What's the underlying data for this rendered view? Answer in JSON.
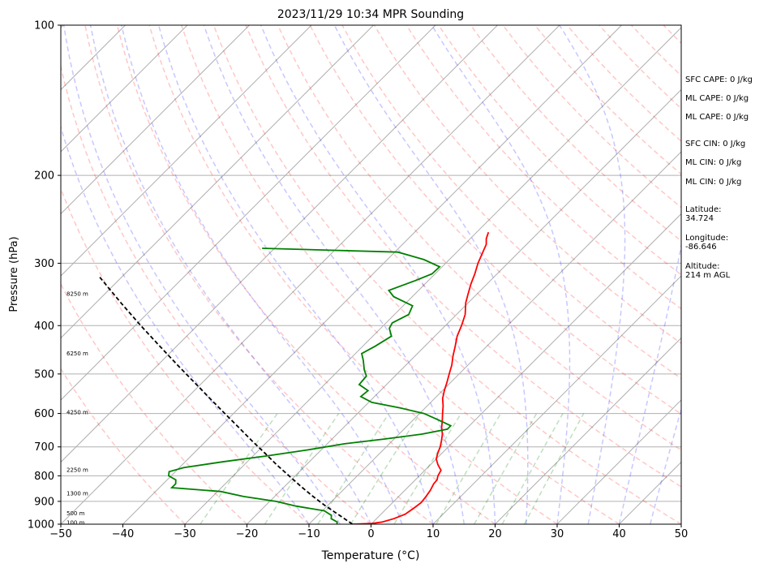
{
  "chart_data": {
    "type": "line",
    "title": "2023/11/29 10:34 MPR Sounding",
    "xlabel": "Temperature (°C)",
    "ylabel": "Pressure (hPa)",
    "xlim": [
      -50,
      50
    ],
    "ylim": [
      1000,
      100
    ],
    "y_scale": "log",
    "x_ticks": [
      "−50",
      "−40",
      "−30",
      "−20",
      "−10",
      "0",
      "10",
      "20",
      "30",
      "40",
      "50"
    ],
    "x_tick_values": [
      -50,
      -40,
      -30,
      -20,
      -10,
      0,
      10,
      20,
      30,
      40,
      50
    ],
    "y_ticks": [
      "100",
      "200",
      "300",
      "400",
      "500",
      "600",
      "700",
      "800",
      "900",
      "1000"
    ],
    "y_tick_values": [
      100,
      200,
      300,
      400,
      500,
      600,
      700,
      800,
      900,
      1000
    ],
    "grid": true,
    "skew": "skew-T",
    "height_labels": [
      {
        "text": "8250 m",
        "p": 345
      },
      {
        "text": "6250 m",
        "p": 455
      },
      {
        "text": "4250 m",
        "p": 596
      },
      {
        "text": "2250 m",
        "p": 778
      },
      {
        "text": "1300 m",
        "p": 868
      },
      {
        "text": "500 m",
        "p": 950
      },
      {
        "text": "100 m",
        "p": 992
      }
    ],
    "series": [
      {
        "role": "temperature",
        "color": "#ff0000",
        "points": [
          [
            1000,
            -3.0
          ],
          [
            997,
            0.0
          ],
          [
            990,
            1.5
          ],
          [
            975,
            2.8
          ],
          [
            955,
            3.9
          ],
          [
            930,
            4.3
          ],
          [
            905,
            4.6
          ],
          [
            880,
            4.4
          ],
          [
            855,
            4.1
          ],
          [
            830,
            3.6
          ],
          [
            815,
            3.5
          ],
          [
            800,
            3.0
          ],
          [
            780,
            2.6
          ],
          [
            760,
            1.2
          ],
          [
            740,
            0.0
          ],
          [
            720,
            -0.7
          ],
          [
            700,
            -1.3
          ],
          [
            680,
            -2.1
          ],
          [
            660,
            -3.0
          ],
          [
            640,
            -4.2
          ],
          [
            620,
            -5.2
          ],
          [
            600,
            -6.3
          ],
          [
            580,
            -7.4
          ],
          [
            560,
            -8.7
          ],
          [
            540,
            -9.7
          ],
          [
            520,
            -10.6
          ],
          [
            500,
            -11.6
          ],
          [
            480,
            -12.6
          ],
          [
            460,
            -13.9
          ],
          [
            440,
            -15.1
          ],
          [
            420,
            -16.4
          ],
          [
            400,
            -17.4
          ],
          [
            380,
            -18.6
          ],
          [
            360,
            -20.4
          ],
          [
            345,
            -21.5
          ],
          [
            330,
            -22.6
          ],
          [
            315,
            -23.6
          ],
          [
            300,
            -24.8
          ],
          [
            285,
            -25.8
          ],
          [
            275,
            -26.5
          ],
          [
            268,
            -27.4
          ],
          [
            260,
            -28.1
          ]
        ]
      },
      {
        "role": "dewpoint",
        "color": "#008000",
        "points": [
          [
            1000,
            -5.5
          ],
          [
            990,
            -5.8
          ],
          [
            975,
            -7.3
          ],
          [
            960,
            -7.8
          ],
          [
            940,
            -9.7
          ],
          [
            920,
            -15.0
          ],
          [
            900,
            -19.0
          ],
          [
            880,
            -25.0
          ],
          [
            860,
            -29.5
          ],
          [
            845,
            -38.0
          ],
          [
            830,
            -38.0
          ],
          [
            815,
            -38.6
          ],
          [
            800,
            -40.4
          ],
          [
            785,
            -41.0
          ],
          [
            770,
            -39.3
          ],
          [
            750,
            -34.0
          ],
          [
            730,
            -27.8
          ],
          [
            710,
            -22.2
          ],
          [
            690,
            -17.2
          ],
          [
            675,
            -11.5
          ],
          [
            660,
            -6.3
          ],
          [
            645,
            -3.0
          ],
          [
            635,
            -3.0
          ],
          [
            620,
            -5.6
          ],
          [
            600,
            -9.3
          ],
          [
            585,
            -14.0
          ],
          [
            570,
            -19.5
          ],
          [
            555,
            -22.2
          ],
          [
            540,
            -22.0
          ],
          [
            525,
            -24.4
          ],
          [
            505,
            -24.6
          ],
          [
            490,
            -26.0
          ],
          [
            470,
            -27.6
          ],
          [
            455,
            -29.0
          ],
          [
            440,
            -28.0
          ],
          [
            420,
            -27.0
          ],
          [
            405,
            -28.6
          ],
          [
            395,
            -29.0
          ],
          [
            380,
            -27.7
          ],
          [
            365,
            -28.5
          ],
          [
            350,
            -33.0
          ],
          [
            340,
            -34.8
          ],
          [
            325,
            -32.1
          ],
          [
            315,
            -30.5
          ],
          [
            305,
            -30.4
          ],
          [
            295,
            -34.1
          ],
          [
            285,
            -39.5
          ],
          [
            280,
            -62.0
          ]
        ]
      },
      {
        "role": "parcel",
        "color": "#000000",
        "points": [
          [
            1000,
            -3.0
          ],
          [
            960,
            -6.5
          ],
          [
            920,
            -10.2
          ],
          [
            880,
            -13.8
          ],
          [
            840,
            -17.4
          ],
          [
            800,
            -21.0
          ],
          [
            760,
            -24.8
          ],
          [
            720,
            -28.6
          ],
          [
            680,
            -32.7
          ],
          [
            640,
            -36.9
          ],
          [
            600,
            -41.4
          ],
          [
            560,
            -46.2
          ],
          [
            520,
            -51.3
          ],
          [
            480,
            -56.8
          ],
          [
            440,
            -62.7
          ],
          [
            400,
            -69.1
          ],
          [
            360,
            -76.0
          ],
          [
            320,
            -83.5
          ]
        ]
      }
    ]
  },
  "side_info": [
    "SFC CAPE: 0 J/kg",
    "ML CAPE: 0 J/kg",
    "ML CAPE: 0 J/kg",
    "SFC CIN: 0 J/kg",
    "ML CIN: 0 J/kg",
    "ML CIN: 0 J/kg",
    "Latitude:\n34.724",
    "Longitude:\n-86.646",
    "Altitude:\n214 m AGL"
  ]
}
